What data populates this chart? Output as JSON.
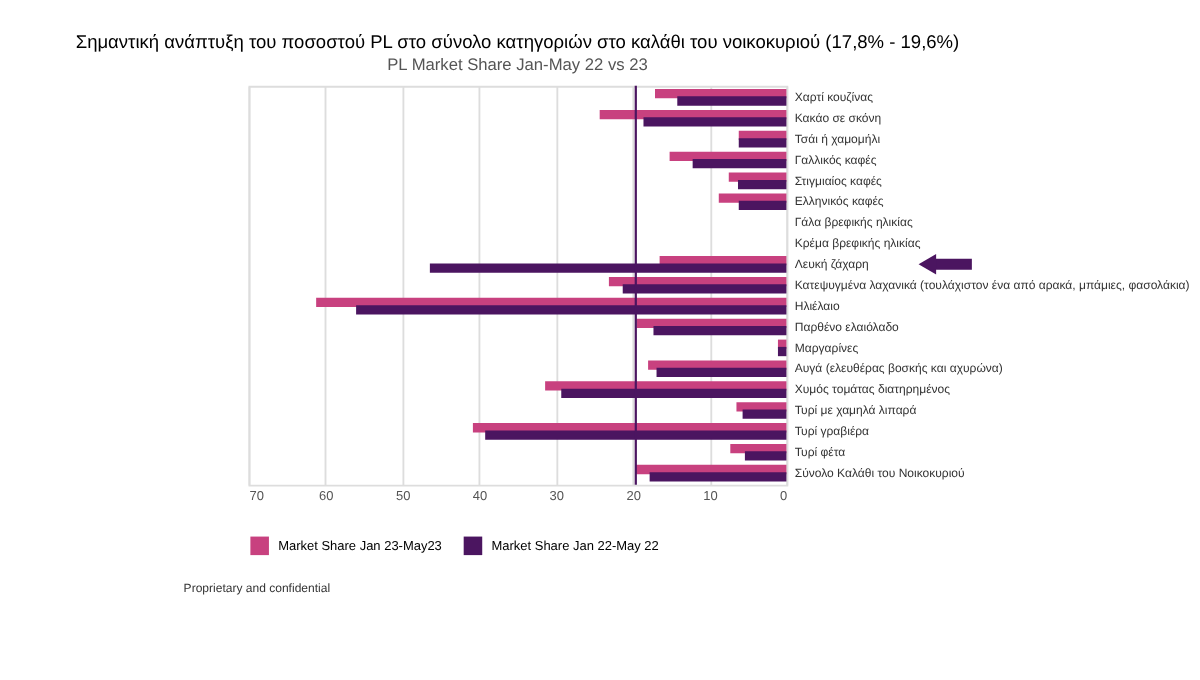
{
  "chart_data": {
    "type": "bar",
    "orientation": "horizontal",
    "title": "Σημαντική ανάπτυξη του ποσοστού PL στο σύνολο κατηγοριών στο καλάθι του νοικοκυριού (17,8% - 19,6%)",
    "subtitle": "PL Market Share Jan-May 22 vs 23",
    "categories": [
      "Χαρτί κουζίνας",
      "Κακάο σε σκόνη",
      "Τσάι ή χαμομήλι",
      "Γαλλικός καφές",
      "Στιγμιαίος καφές",
      "Ελληνικός καφές",
      "Γάλα βρεφικής ηλικίας",
      "Κρέμα βρεφικής ηλικίας",
      "Λευκή ζάχαρη",
      "Κατεψυγμένα λαχανικά (τουλάχιστον ένα από αρακά, μπάμιες, φασολάκια)",
      "Ηλιέλαιο",
      "Παρθένο ελαιόλαδο",
      "Μαργαρίνες",
      "Αυγά (ελευθέρας βοσκής και αχυρώνα)",
      "Χυμός τομάτας διατηρημένος",
      "Τυρί με χαμηλά λιπαρά",
      "Τυρί γραβιέρα",
      "Τυρί φέτα",
      "Σύνολο Καλάθι του Νοικοκυριού"
    ],
    "series": [
      {
        "name": "Market Share Jan 23-May23",
        "color": "#c8417f",
        "values": [
          17.1,
          24.3,
          6.2,
          15.2,
          7.5,
          8.8,
          0,
          0,
          16.5,
          23.1,
          61.2,
          19.5,
          1.1,
          18.0,
          31.4,
          6.5,
          40.8,
          7.3,
          19.6
        ]
      },
      {
        "name": "Market Share Jan 22-May 22",
        "color": "#4b1560",
        "values": [
          14.2,
          18.6,
          6.2,
          12.2,
          6.3,
          6.2,
          0,
          0,
          46.4,
          21.3,
          56.0,
          17.3,
          1.1,
          16.9,
          29.3,
          5.7,
          39.2,
          5.4,
          17.8
        ]
      }
    ],
    "xlim": [
      70,
      0
    ],
    "xticks": [
      0,
      10,
      20,
      30,
      40,
      50,
      60,
      70
    ],
    "grid": "x",
    "legend": "bottom",
    "ref_lines": [
      {
        "axis": "x",
        "value": 19.6,
        "color": "#4b1560"
      }
    ],
    "annotations": [
      "Proprietary and confidential"
    ]
  }
}
